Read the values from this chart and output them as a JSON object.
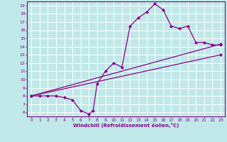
{
  "xlabel": "Windchill (Refroidissement éolien,°C)",
  "bg_color": "#c0e8e8",
  "line_color": "#880088",
  "grid_color": "#ffffff",
  "xlim": [
    -0.5,
    23.5
  ],
  "ylim": [
    5.5,
    19.5
  ],
  "xticks": [
    0,
    1,
    2,
    3,
    4,
    5,
    6,
    7,
    8,
    9,
    10,
    11,
    12,
    13,
    14,
    15,
    16,
    17,
    18,
    19,
    20,
    21,
    22,
    23
  ],
  "yticks": [
    6,
    7,
    8,
    9,
    10,
    11,
    12,
    13,
    14,
    15,
    16,
    17,
    18,
    19
  ],
  "line1_x": [
    0,
    1,
    2,
    3,
    4,
    5,
    6,
    7,
    7.5,
    8,
    9,
    10,
    11,
    12,
    13,
    14,
    15,
    16,
    17,
    18,
    19,
    20,
    21,
    22,
    23
  ],
  "line1_y": [
    8,
    8,
    8,
    8,
    7.8,
    7.5,
    6.2,
    5.8,
    6.2,
    9.5,
    11,
    12,
    11.5,
    16.5,
    17.5,
    18.2,
    19.2,
    18.5,
    16.5,
    16.2,
    16.5,
    14.5,
    14.5,
    14.2,
    14.2
  ],
  "line2_x": [
    0,
    23
  ],
  "line2_y": [
    8.0,
    14.3
  ],
  "line3_x": [
    0,
    23
  ],
  "line3_y": [
    8.0,
    13.0
  ],
  "marker": "D",
  "markersize": 2.2,
  "linewidth": 0.9
}
